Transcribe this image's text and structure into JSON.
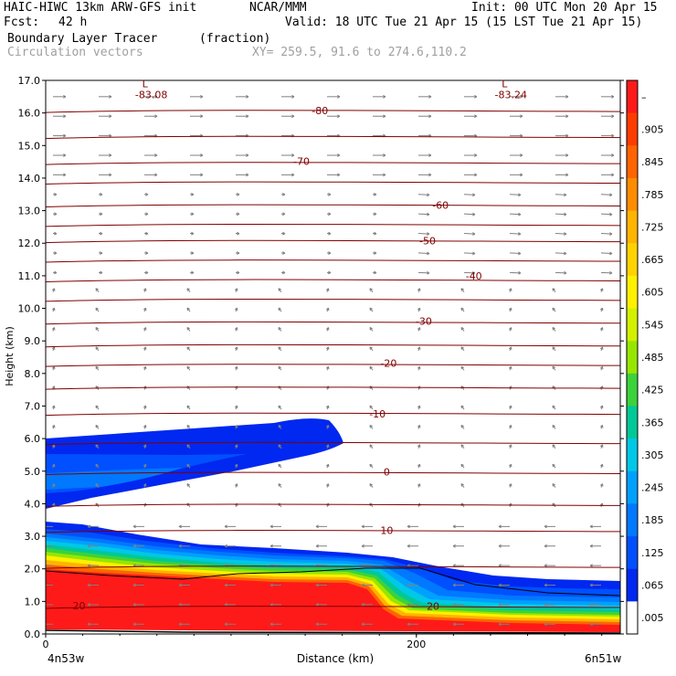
{
  "header": {
    "model_line": "HAIC-HIWC 13km ARW-GFS init",
    "org": "NCAR/MMM",
    "init": "Init: 00 UTC Mon 20 Apr 15",
    "fcst_label": "Fcst:",
    "fcst_value": "42 h",
    "valid": "Valid: 18 UTC Tue 21 Apr 15 (15 LST Tue 21 Apr 15)",
    "field_name": "Boundary Layer Tracer",
    "field_units": "(fraction)",
    "vector_label": "Circulation vectors",
    "xy_label": "XY= 259.5, 91.6 to 274.6,110.2"
  },
  "chart_data": {
    "type": "heatmap",
    "title": "Boundary Layer Tracer",
    "units": "(fraction)",
    "xlabel": "Distance (km)",
    "ylabel": "Height (km)",
    "xlim": [
      0,
      310
    ],
    "ylim": [
      0,
      17
    ],
    "x_ticks": [
      0,
      200
    ],
    "x_tick_labels": [
      "0",
      "200"
    ],
    "x_end_labels": [
      "4n53w",
      "6n51w"
    ],
    "y_ticks": [
      0,
      1,
      2,
      3,
      4,
      5,
      6,
      7,
      8,
      9,
      10,
      11,
      12,
      13,
      14,
      15,
      16,
      17
    ],
    "y_tick_labels": [
      "0.0",
      "1.0",
      "2.0",
      "3.0",
      "4.0",
      "5.0",
      "6.0",
      "7.0",
      "8.0",
      "9.0",
      "10.0",
      "11.0",
      "12.0",
      "13.0",
      "14.0",
      "15.0",
      "16.0",
      "17.0"
    ],
    "colorbar": {
      "labels": [
        "–",
        ".905",
        ".845",
        ".785",
        ".725",
        ".665",
        ".605",
        ".545",
        ".485",
        ".425",
        ".365",
        ".305",
        ".245",
        ".185",
        ".125",
        ".065",
        ".005"
      ],
      "colors": [
        "#ff1a1a",
        "#ff3c00",
        "#ff6400",
        "#ff8c00",
        "#ffb400",
        "#ffd200",
        "#fff000",
        "#d2f000",
        "#96e600",
        "#3cd23c",
        "#00c896",
        "#00c8e6",
        "#00a0ff",
        "#0078ff",
        "#0050ff",
        "#0028f0",
        "#ffffff"
      ]
    },
    "temperature_contours": {
      "color": "#800000",
      "levels": [
        {
          "label": "-80",
          "x": 148,
          "y": 16.07
        },
        {
          "label": "-70",
          "x": 138,
          "y": 14.52
        },
        {
          "label": "-60",
          "x": 213,
          "y": 13.17
        },
        {
          "label": "-50",
          "x": 206,
          "y": 12.08
        },
        {
          "label": "-40",
          "x": 231,
          "y": 10.99
        },
        {
          "label": "-30",
          "x": 204,
          "y": 9.61
        },
        {
          "label": "-20",
          "x": 185,
          "y": 8.32
        },
        {
          "label": "-10",
          "x": 179,
          "y": 6.76
        },
        {
          "label": "0",
          "x": 184,
          "y": 4.98
        },
        {
          "label": "10",
          "x": 184,
          "y": 3.18
        },
        {
          "label": "20",
          "x": 209,
          "y": 0.85
        },
        {
          "label": "20",
          "x": 18,
          "y": 0.87
        }
      ],
      "lows": [
        {
          "label": "-83.08",
          "x": 57,
          "y": 16.57
        },
        {
          "label": "-83.24",
          "x": 251,
          "y": 16.57
        }
      ]
    },
    "tracer_regions": [
      {
        "value": 0.065,
        "color": "#0030f0",
        "description": "upper detached layer 4.0-6.6 km"
      },
      {
        "value": 0.9,
        "color": "#ff1a1a",
        "description": "boundary layer max near surface"
      }
    ]
  }
}
